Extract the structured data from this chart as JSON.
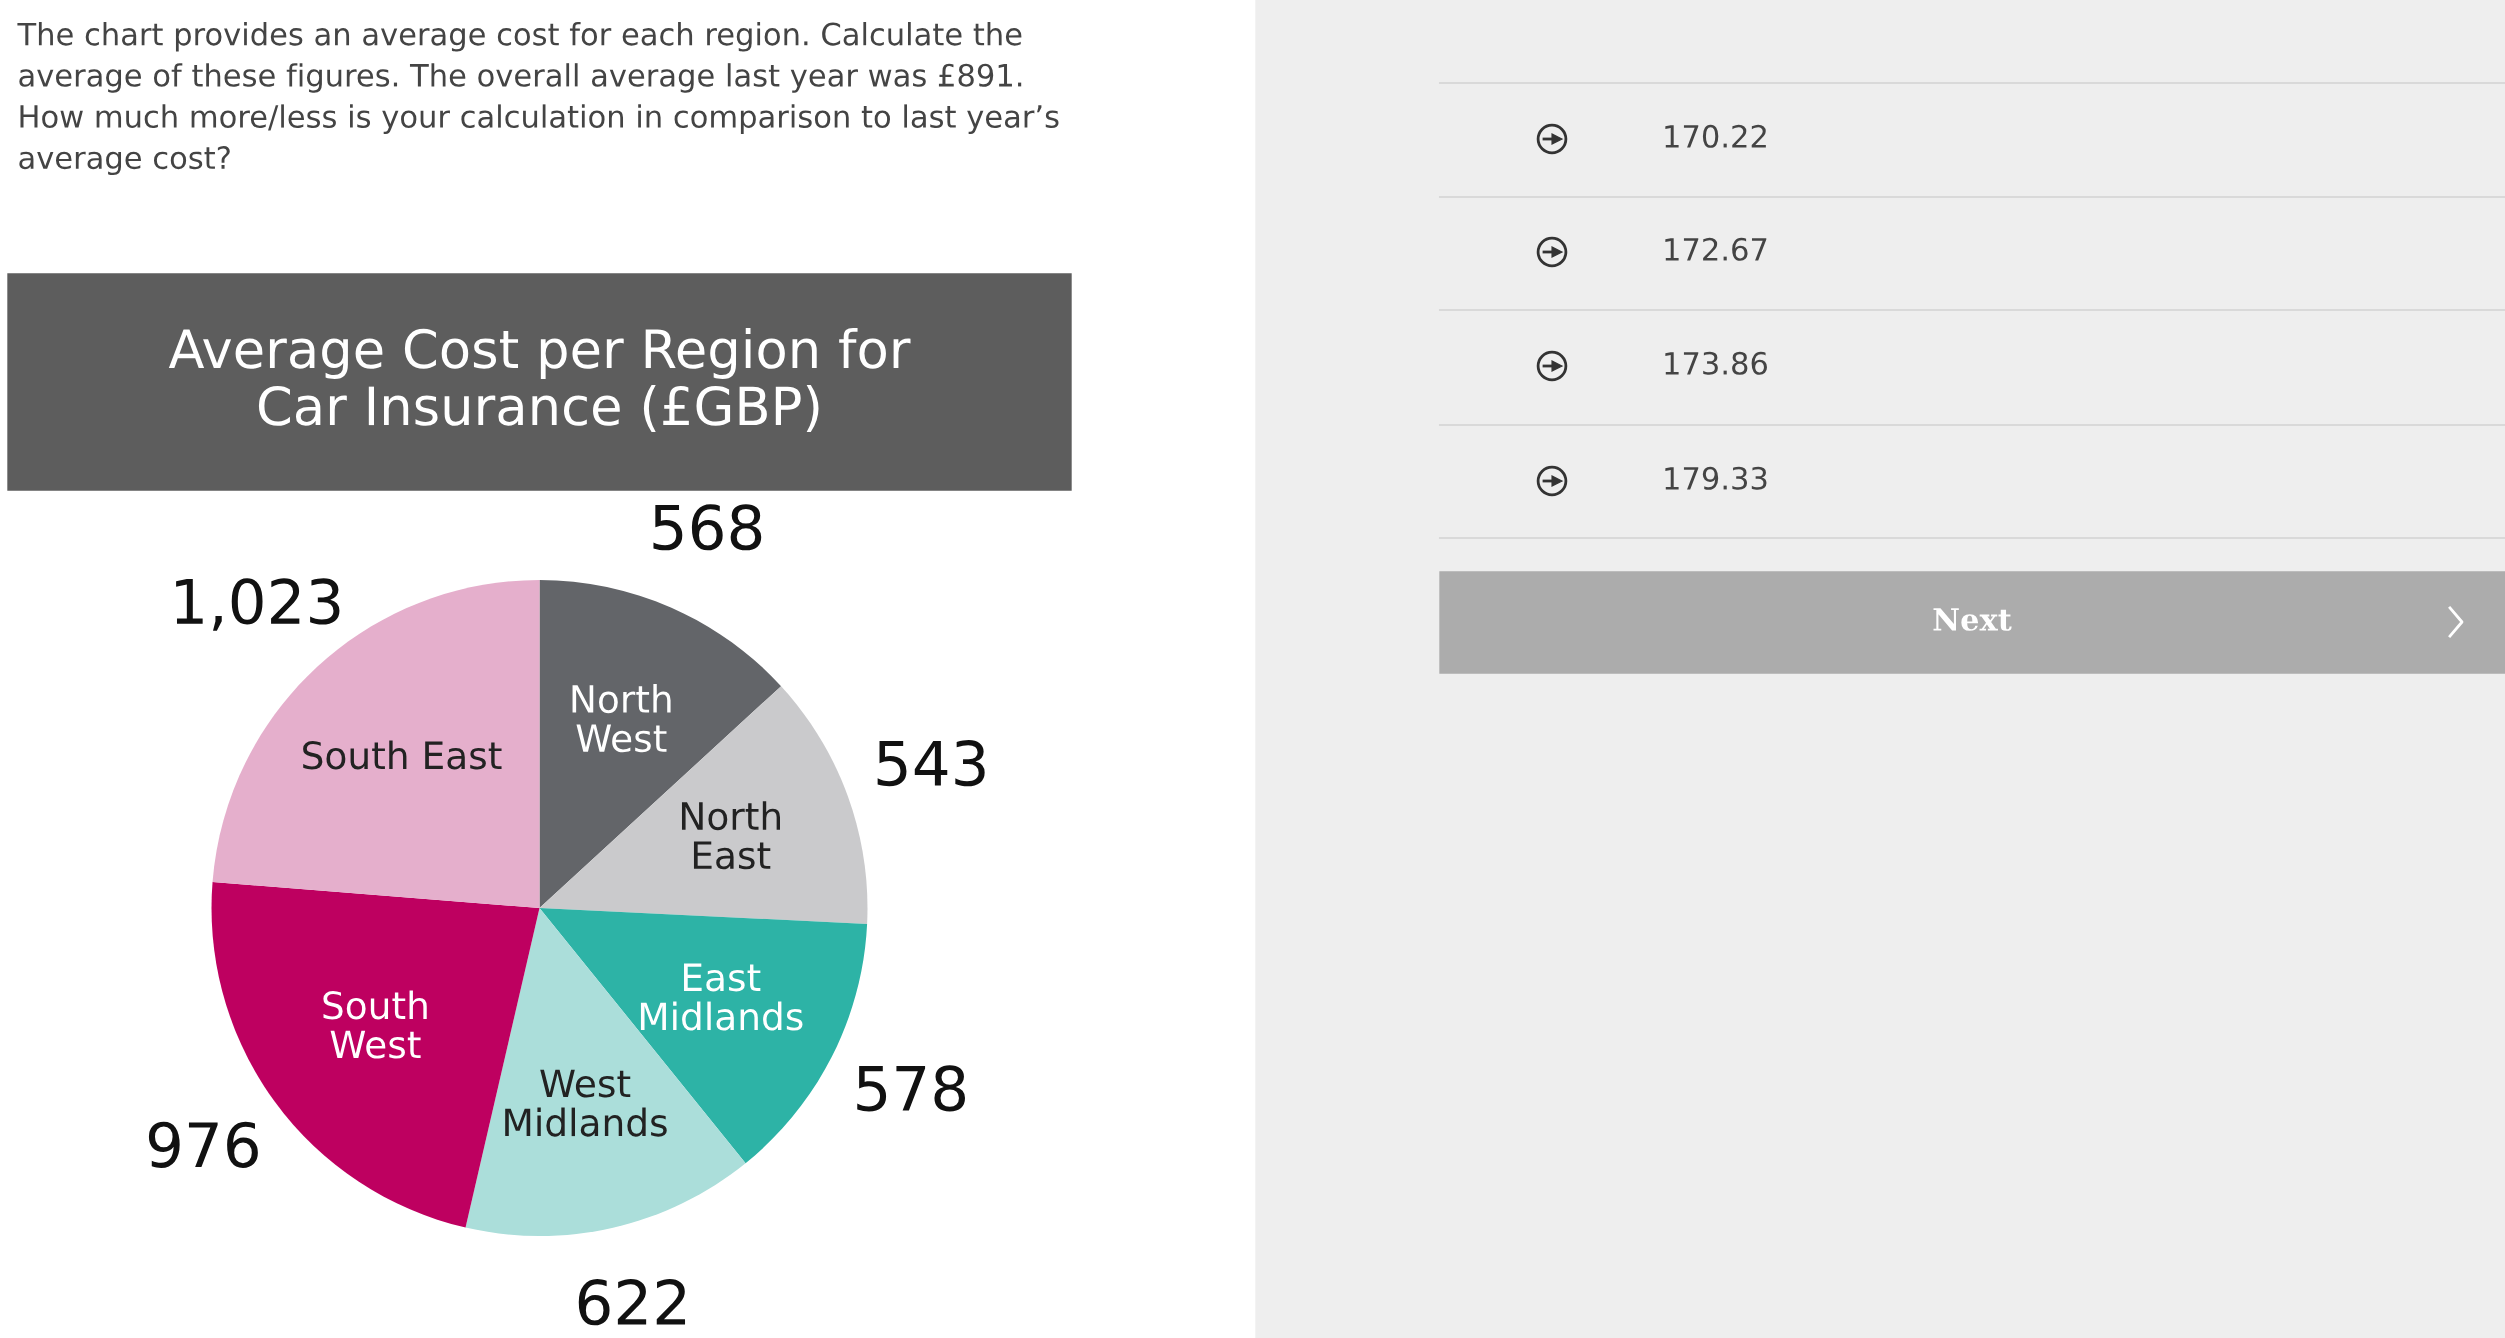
{
  "chart_data": [
    {
      "type": "other",
      "annotations": [
        "The chart provides an average cost for each region. Calculate the average of these figures. The overall average last year was £891.  How much more/less is your calculation in comparison to last year’s average cost?"
      ]
    },
    {
      "type": "pie",
      "title": "Average Cost per Region for\nCar Insurance (£GBP)",
      "categories": [
        "North\nWest",
        "North\nEast",
        "East\nMidlands",
        "West\nMidlands",
        "South\nWest",
        "South East"
      ],
      "values": [
        568,
        543,
        578,
        622,
        976,
        1023
      ],
      "colors": [
        "#636569",
        "#cacacc",
        "#2db3a6",
        "#abdeda",
        "#be0060",
        "#e5afcc"
      ],
      "value_labels": [
        "568",
        "543",
        "578",
        "622",
        "976",
        "1,023"
      ]
    },
    {
      "type": "other",
      "annotations": [
        "170.22",
        "172.67",
        "173.86",
        "179.33",
        "Next"
      ]
    }
  ]
}
